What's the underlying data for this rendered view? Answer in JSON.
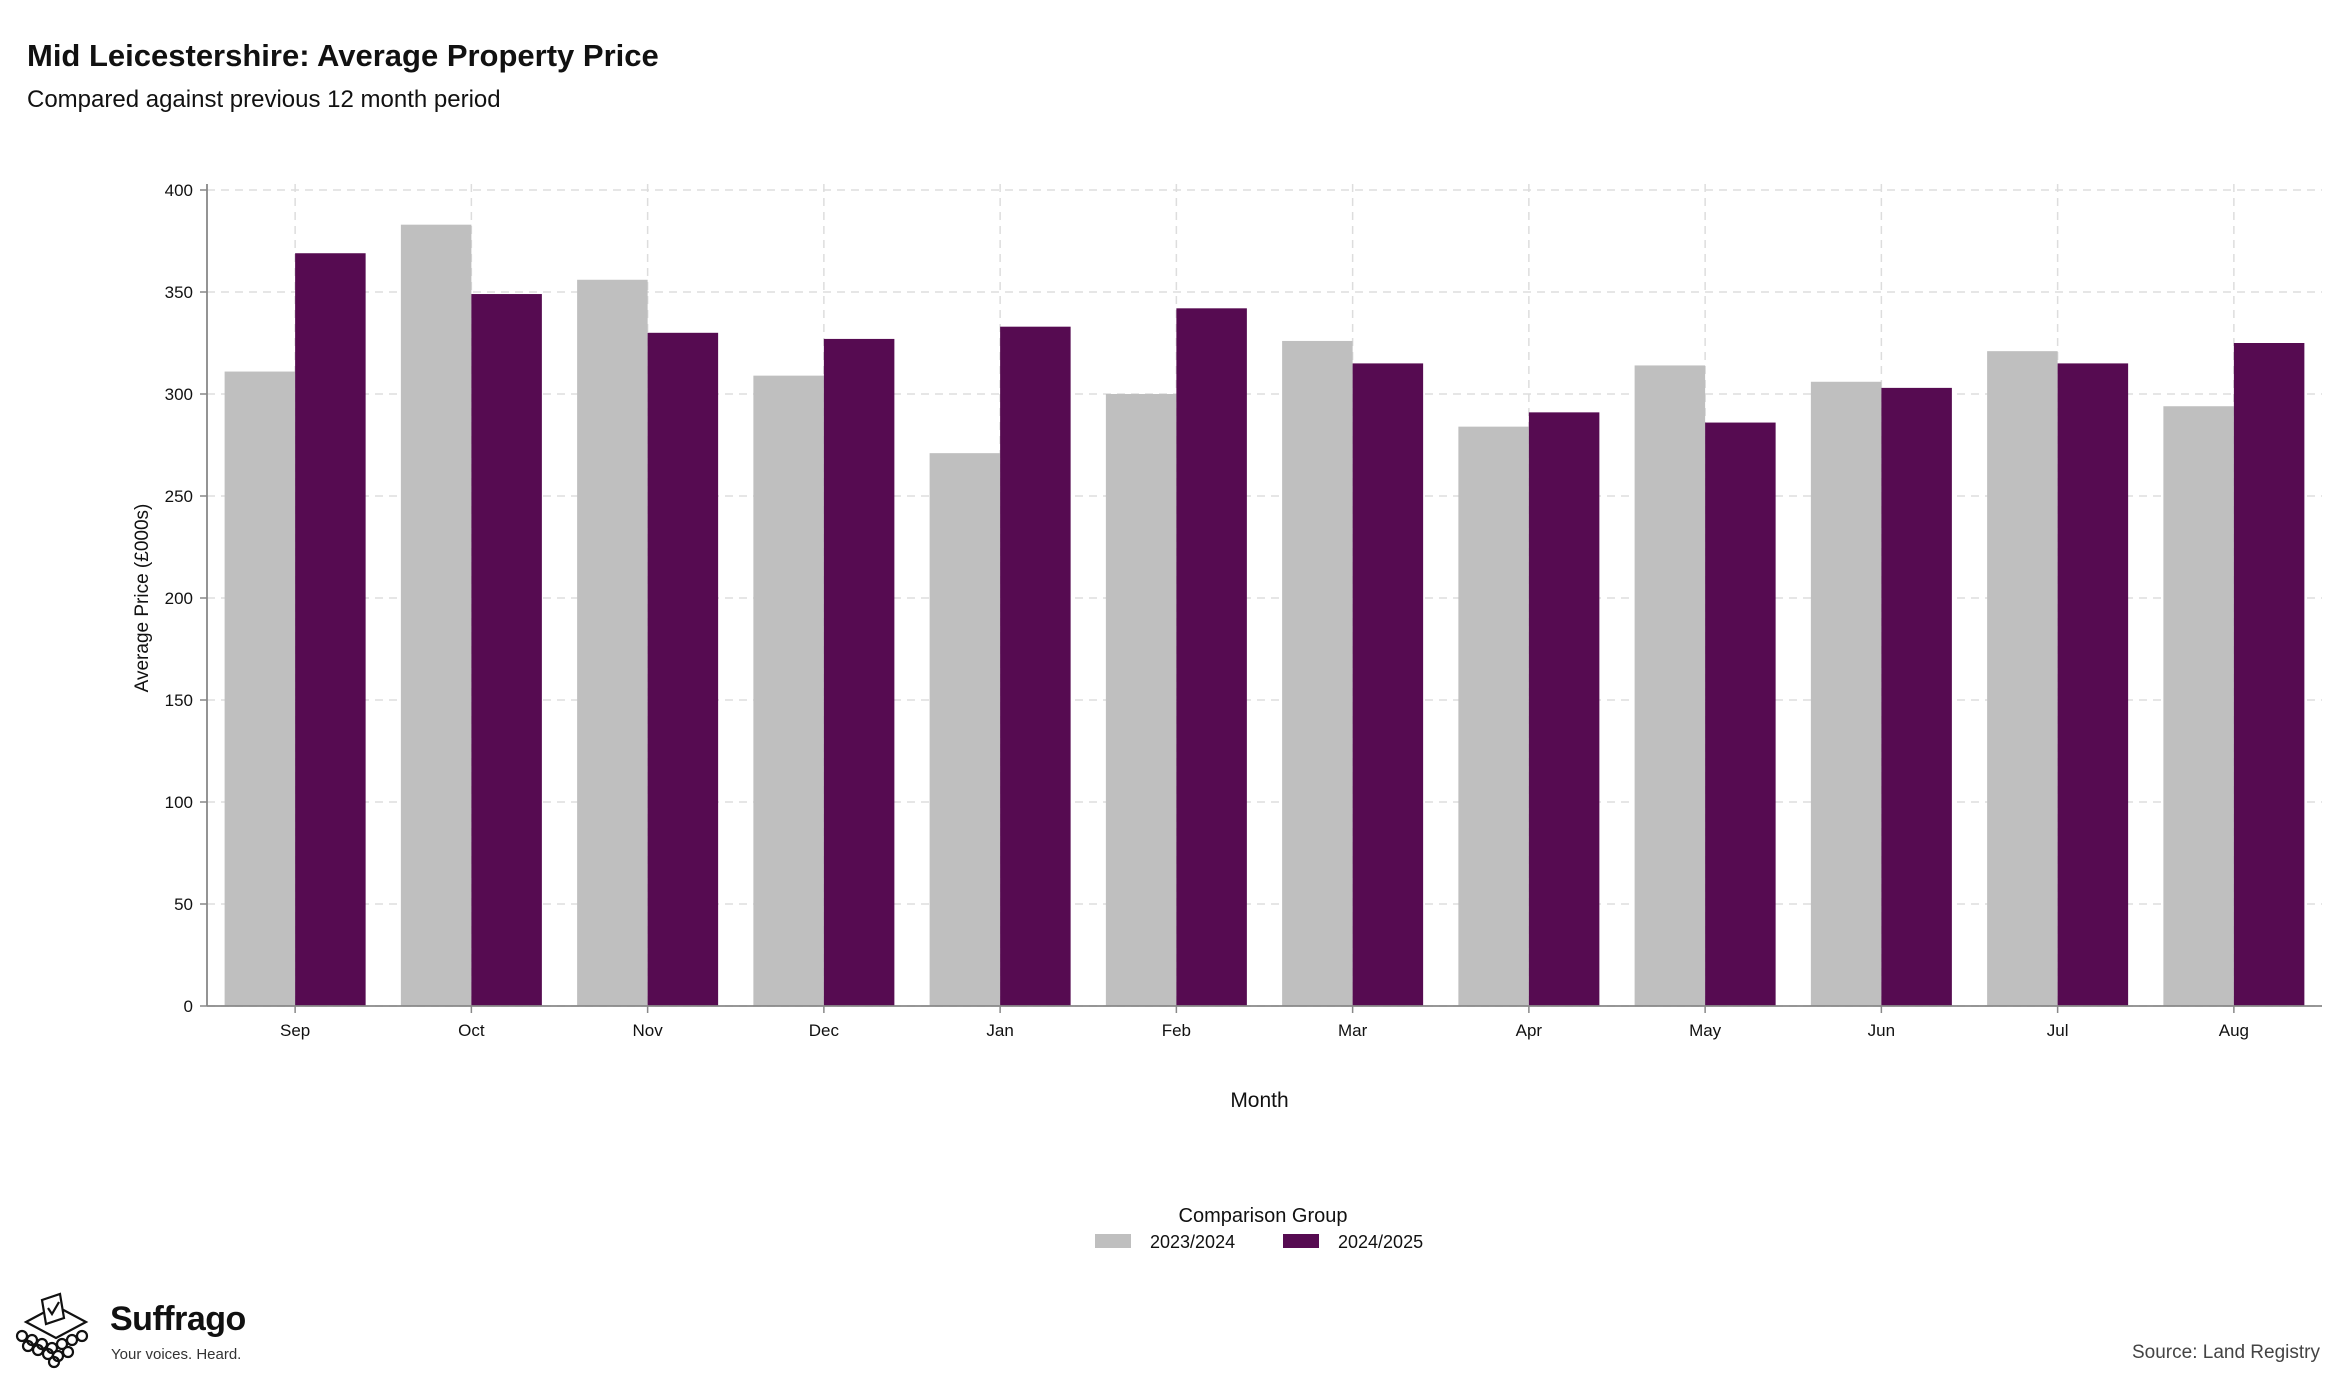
{
  "header": {
    "title": "Mid Leicestershire: Average Property Price",
    "subtitle": "Compared against previous 12 month period"
  },
  "footer": {
    "brand_name": "Suffrago",
    "brand_tagline": "Your voices. Heard.",
    "source": "Source: Land Registry"
  },
  "colors": {
    "series_2023_2024": "#bfbfbf",
    "series_2024_2025": "#560b51",
    "grid": "#dddddd",
    "axis": "#888888"
  },
  "chart_data": {
    "type": "bar",
    "title": "Mid Leicestershire: Average Property Price",
    "subtitle": "Compared against previous 12 month period",
    "xlabel": "Month",
    "ylabel": "Average Price (£000s)",
    "ylim": [
      0,
      400
    ],
    "yticks": [
      0,
      50,
      100,
      150,
      200,
      250,
      300,
      350,
      400
    ],
    "grid": true,
    "legend_title": "Comparison Group",
    "legend_position": "bottom",
    "categories": [
      "Sep",
      "Oct",
      "Nov",
      "Dec",
      "Jan",
      "Feb",
      "Mar",
      "Apr",
      "May",
      "Jun",
      "Jul",
      "Aug"
    ],
    "series": [
      {
        "name": "2023/2024",
        "color": "#bfbfbf",
        "values": [
          311,
          383,
          356,
          309,
          271,
          300,
          326,
          284,
          314,
          306,
          321,
          294
        ]
      },
      {
        "name": "2024/2025",
        "color": "#560b51",
        "values": [
          369,
          349,
          330,
          327,
          333,
          342,
          315,
          291,
          286,
          303,
          315,
          325
        ]
      }
    ]
  }
}
